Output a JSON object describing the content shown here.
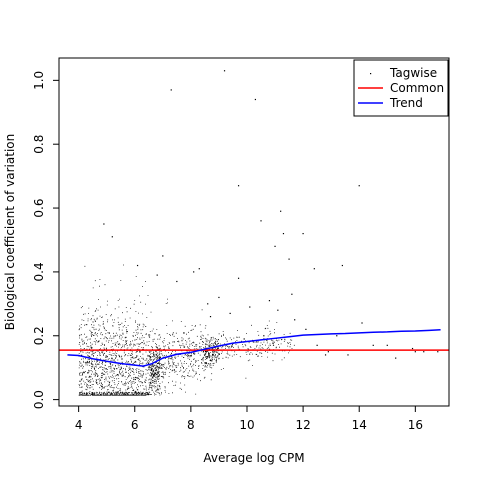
{
  "chart_data": {
    "type": "scatter",
    "title": "",
    "xlabel": "Average log CPM",
    "ylabel": "Biological coefficient of variation",
    "xlim": [
      3.3,
      17.2
    ],
    "ylim": [
      -0.02,
      1.07
    ],
    "xticks": [
      4,
      6,
      8,
      10,
      12,
      14,
      16
    ],
    "yticks": [
      0.0,
      0.2,
      0.4,
      0.6,
      0.8,
      1.0
    ],
    "xtick_labels": [
      "4",
      "6",
      "8",
      "10",
      "12",
      "14",
      "16"
    ],
    "ytick_labels": [
      "0.0",
      "0.2",
      "0.4",
      "0.6",
      "0.8",
      "1.0"
    ],
    "grid": false,
    "legend_position": "top-right",
    "series": [
      {
        "name": "Tagwise",
        "kind": "points",
        "color": "#000000",
        "x": [
          9.2,
          10.3,
          7.3,
          9.7,
          10.5,
          11.0,
          11.2,
          11.3,
          11.5,
          12.0,
          14.0,
          13.4,
          12.4,
          9.7,
          4.9,
          5.2,
          6.1,
          6.8,
          7.0,
          7.5,
          8.1,
          8.3,
          8.6,
          9.0,
          9.4,
          10.1,
          10.8,
          11.6,
          12.1,
          12.5,
          12.9,
          13.6,
          14.1,
          14.5,
          15.3,
          15.9,
          16.3,
          16.8,
          8.7,
          9.9,
          10.6,
          11.1,
          11.7,
          12.8,
          13.2,
          15.0,
          16.0
        ],
        "y": [
          1.03,
          0.94,
          0.97,
          0.67,
          0.56,
          0.48,
          0.59,
          0.52,
          0.44,
          0.52,
          0.67,
          0.42,
          0.41,
          0.38,
          0.55,
          0.51,
          0.42,
          0.39,
          0.45,
          0.37,
          0.4,
          0.41,
          0.3,
          0.32,
          0.27,
          0.29,
          0.31,
          0.33,
          0.22,
          0.17,
          0.15,
          0.14,
          0.24,
          0.17,
          0.13,
          0.16,
          0.15,
          0.15,
          0.26,
          0.19,
          0.2,
          0.28,
          0.25,
          0.14,
          0.2,
          0.17,
          0.15
        ]
      },
      {
        "name": "Common",
        "kind": "hline",
        "color": "#ff0000",
        "y": 0.155
      },
      {
        "name": "Trend",
        "kind": "line",
        "color": "#0000ff",
        "x": [
          3.6,
          4.0,
          4.5,
          5.0,
          5.5,
          6.0,
          6.3,
          6.6,
          7.0,
          7.5,
          8.0,
          8.5,
          9.0,
          9.5,
          10.0,
          10.5,
          11.0,
          11.5,
          12.0,
          12.5,
          13.0,
          13.5,
          14.0,
          14.5,
          15.0,
          15.5,
          16.0,
          16.5,
          16.9
        ],
        "y": [
          0.14,
          0.138,
          0.128,
          0.12,
          0.113,
          0.108,
          0.105,
          0.112,
          0.13,
          0.142,
          0.148,
          0.158,
          0.168,
          0.177,
          0.182,
          0.187,
          0.192,
          0.197,
          0.202,
          0.204,
          0.206,
          0.207,
          0.209,
          0.211,
          0.212,
          0.214,
          0.215,
          0.217,
          0.219
        ]
      }
    ]
  }
}
